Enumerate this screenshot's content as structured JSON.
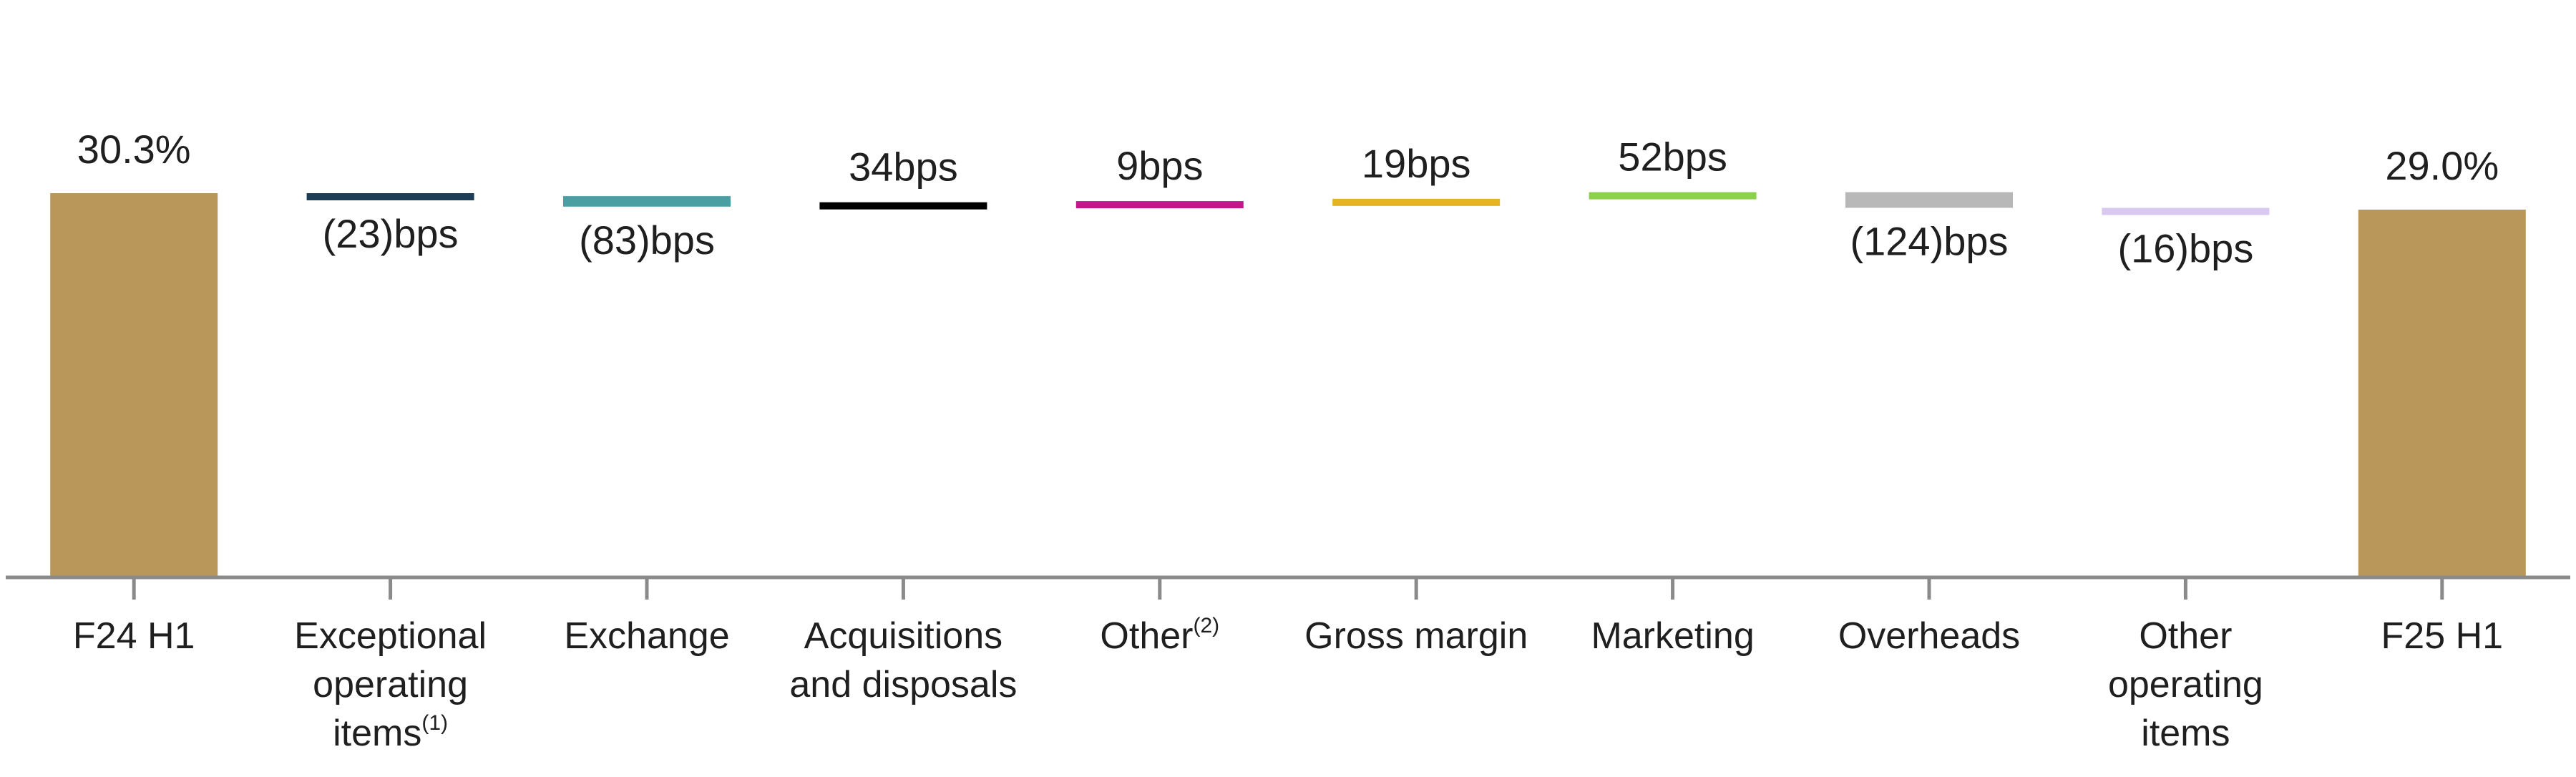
{
  "chart_data": {
    "type": "bar",
    "subtype": "waterfall",
    "title": "",
    "xlabel": "",
    "ylabel": "",
    "unit": "%",
    "ylim": [
      0,
      31.5
    ],
    "grid": false,
    "legend": "none",
    "categories": [
      {
        "lines": [
          "F24 H1"
        ]
      },
      {
        "lines": [
          "Exceptional",
          "operating",
          "items"
        ],
        "sup": "(1)"
      },
      {
        "lines": [
          "Exchange"
        ]
      },
      {
        "lines": [
          "Acquisitions",
          "and disposals"
        ]
      },
      {
        "lines": [
          "Other"
        ],
        "sup": "(2)"
      },
      {
        "lines": [
          "Gross margin"
        ]
      },
      {
        "lines": [
          "Marketing"
        ]
      },
      {
        "lines": [
          "Overheads"
        ]
      },
      {
        "lines": [
          "Other",
          "operating",
          "items"
        ]
      },
      {
        "lines": [
          "F25 H1"
        ]
      }
    ],
    "bars": [
      {
        "kind": "total",
        "value": 30.3,
        "label": "30.3%",
        "color": "#b9975b"
      },
      {
        "kind": "delta",
        "value": -0.23,
        "label": "(23)bps",
        "color": "#1d3c55"
      },
      {
        "kind": "delta",
        "value": -0.83,
        "label": "(83)bps",
        "color": "#4a9fa3"
      },
      {
        "kind": "delta",
        "value": 0.34,
        "label": "34bps",
        "color": "#000000"
      },
      {
        "kind": "delta",
        "value": 0.09,
        "label": "9bps",
        "color": "#c0198c"
      },
      {
        "kind": "delta",
        "value": 0.19,
        "label": "19bps",
        "color": "#e6b422"
      },
      {
        "kind": "delta",
        "value": 0.52,
        "label": "52bps",
        "color": "#8cd14b"
      },
      {
        "kind": "delta",
        "value": -1.24,
        "label": "(124)bps",
        "color": "#b8b8b8"
      },
      {
        "kind": "delta",
        "value": -0.16,
        "label": "(16)bps",
        "color": "#d9c8ef"
      },
      {
        "kind": "total",
        "value": 29.0,
        "label": "29.0%",
        "color": "#b9975b"
      }
    ],
    "axis_color": "#8a8a8a"
  }
}
